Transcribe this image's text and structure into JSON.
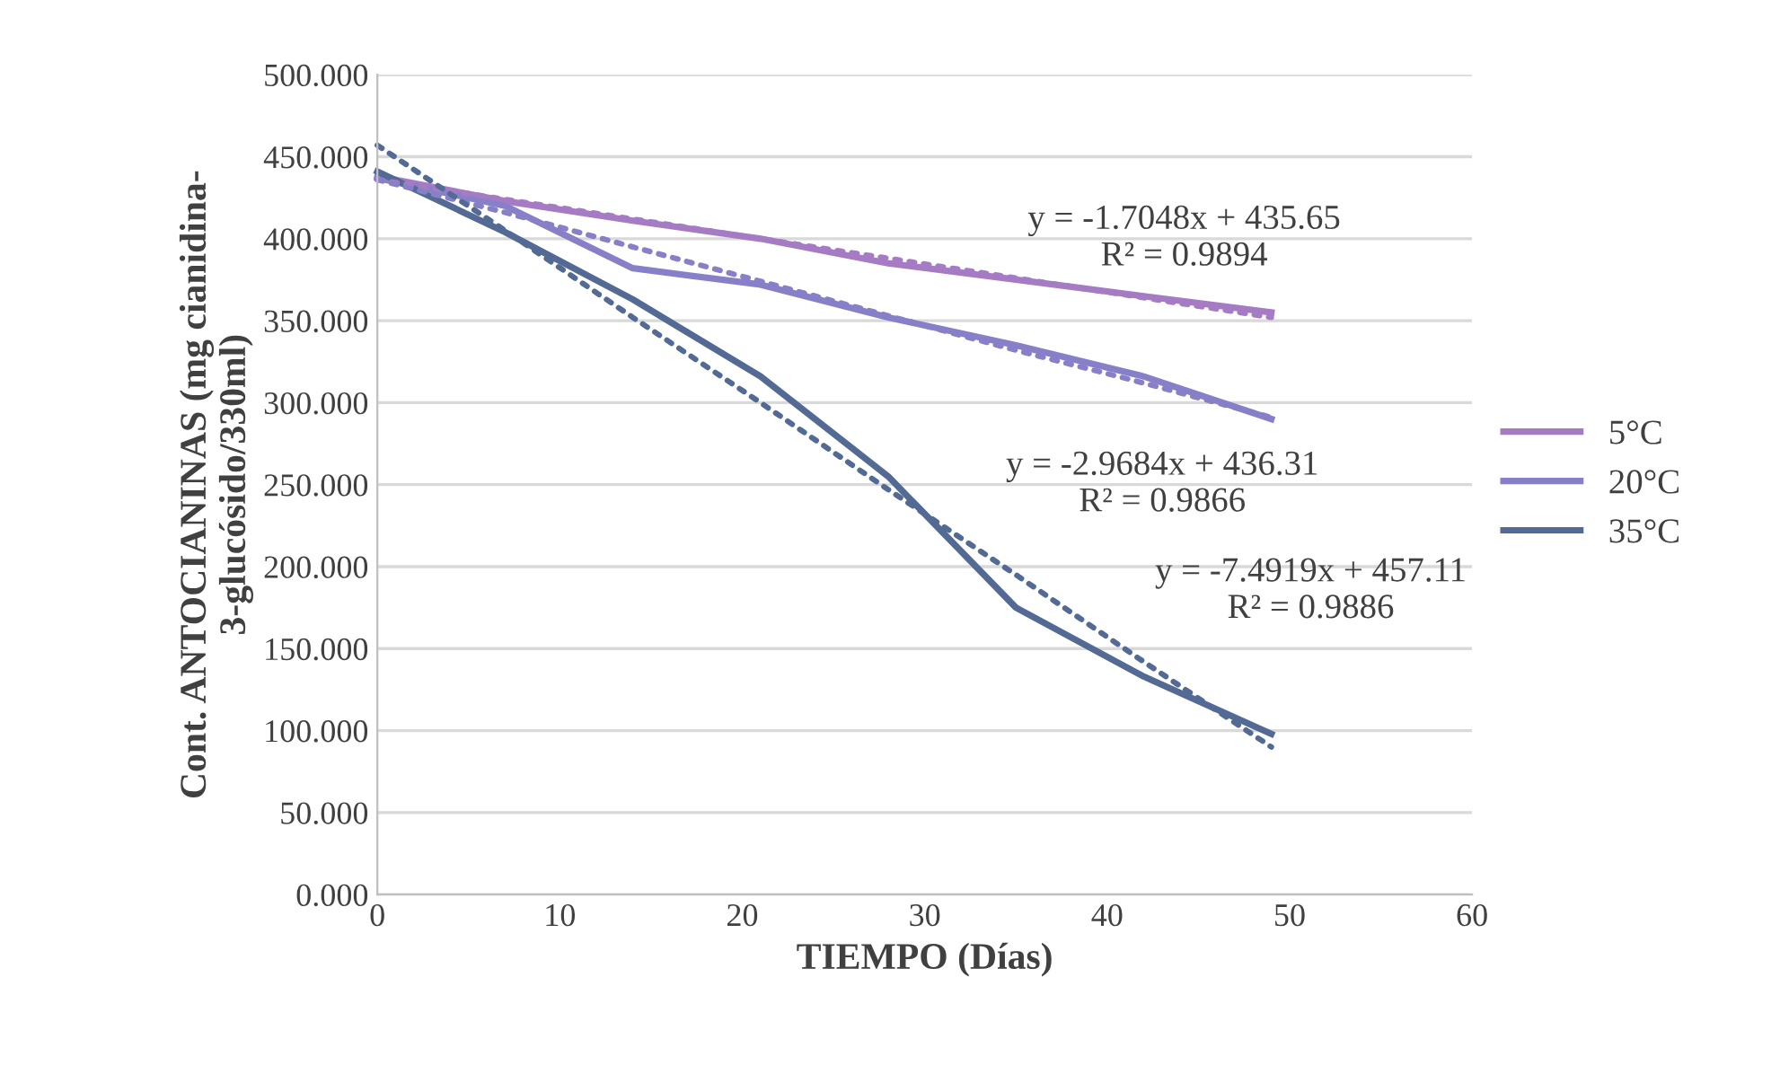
{
  "chart_data": {
    "type": "line",
    "xlabel": "TIEMPO (Días)",
    "ylabel": "Cont. ANTOCIANINAS (mg cianidina-\n3-glucósido/330ml)",
    "x": [
      0,
      7,
      14,
      21,
      28,
      35,
      42,
      49
    ],
    "series": [
      {
        "name": "5°C",
        "color": "#a57cc4",
        "values": [
          438,
          423,
          411,
          400,
          385,
          375,
          365,
          355
        ]
      },
      {
        "name": "20°C",
        "color": "#8780c9",
        "values": [
          437,
          420,
          382,
          372,
          352,
          335,
          316,
          290
        ]
      },
      {
        "name": "35°C",
        "color": "#536a95",
        "values": [
          441,
          404,
          363,
          316,
          255,
          175,
          133,
          98
        ]
      },
      {
        "color": "#a57cc4",
        "values": [
          436,
          424,
          412,
          400,
          388,
          376,
          364,
          352
        ],
        "line_style": "dotted"
      },
      {
        "color": "#8780c9",
        "values": [
          436,
          416,
          395,
          374,
          353,
          332,
          312,
          291
        ],
        "line_style": "dotted"
      },
      {
        "color": "#536a95",
        "values": [
          457,
          405,
          352,
          300,
          247,
          195,
          142,
          90
        ],
        "line_style": "dotted"
      }
    ],
    "annotations": [
      "y = -1.7048x + 435.65\nR² = 0.9894",
      "y = -2.9684x + 436.31\nR² = 0.9866",
      "y = -7.4919x + 457.11\nR² = 0.9886"
    ],
    "xlim": [
      0,
      60
    ],
    "xticks": [
      0,
      10,
      20,
      30,
      40,
      50,
      60
    ],
    "ylim": [
      0,
      500
    ],
    "yticks": [
      {
        "value": 0,
        "label": "0.000"
      },
      {
        "value": 50,
        "label": "50.000"
      },
      {
        "value": 100,
        "label": "100.000"
      },
      {
        "value": 150,
        "label": "150.000"
      },
      {
        "value": 200,
        "label": "200.000"
      },
      {
        "value": 250,
        "label": "250.000"
      },
      {
        "value": 300,
        "label": "300.000"
      },
      {
        "value": 350,
        "label": "350.000"
      },
      {
        "value": 400,
        "label": "400.000"
      },
      {
        "value": 450,
        "label": "450.000"
      },
      {
        "value": 500,
        "label": "500.000"
      }
    ],
    "grid": "y",
    "legend": "right",
    "marker": "none",
    "line_style": "solid"
  }
}
